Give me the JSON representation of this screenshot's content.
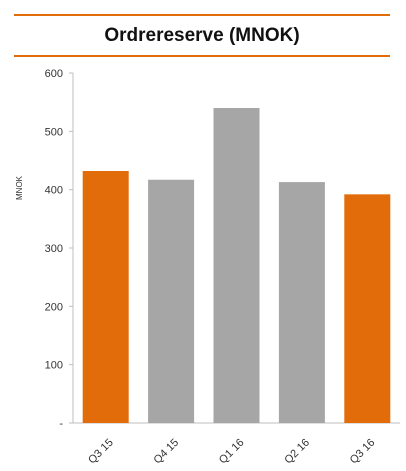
{
  "colors": {
    "accent": "#e36c0a",
    "highlight_bar": "#e36c0a",
    "base_bar": "#a6a6a6",
    "axis": "#bfbfbf"
  },
  "chart_data": {
    "type": "bar",
    "title": "Ordrereserve (MNOK)",
    "ylabel": "MNOK",
    "xlabel": "",
    "categories": [
      "Q3 15",
      "Q4 15",
      "Q1 16",
      "Q2 16",
      "Q3 16"
    ],
    "values": [
      432,
      417,
      540,
      413,
      392
    ],
    "highlighted": [
      true,
      false,
      false,
      false,
      true
    ],
    "ylim": [
      0,
      600
    ],
    "yticks": [
      0,
      100,
      200,
      300,
      400,
      500,
      600
    ],
    "ytick_labels": [
      "-",
      "100",
      "200",
      "300",
      "400",
      "500",
      "600"
    ],
    "grid": false,
    "legend": "none"
  }
}
